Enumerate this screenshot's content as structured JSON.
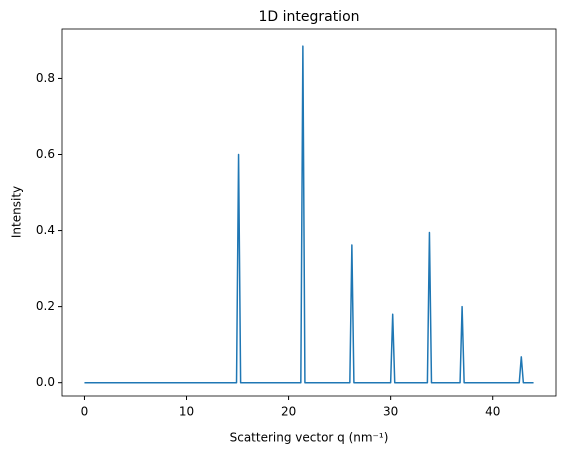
{
  "chart_data": {
    "type": "line",
    "title": "1D integration",
    "x_label": "Scattering vector q (nm⁻¹)",
    "y_label": "Intensity",
    "x": [
      0,
      14.9,
      15.1,
      15.3,
      21.2,
      21.4,
      21.6,
      26.0,
      26.2,
      26.4,
      30.0,
      30.2,
      30.4,
      33.6,
      33.8,
      34.0,
      36.8,
      37.0,
      37.2,
      42.6,
      42.8,
      43.0,
      44
    ],
    "series": [
      {
        "name": "Intensity",
        "color": "#1f77b4",
        "values": [
          0,
          0,
          0.6,
          0,
          0,
          0.885,
          0,
          0,
          0.362,
          0,
          0,
          0.18,
          0,
          0,
          0.395,
          0,
          0,
          0.2,
          0,
          0,
          0.068,
          0,
          0
        ]
      }
    ],
    "xlim": [
      -2.2,
      46.2
    ],
    "ylim": [
      -0.035,
      0.93
    ],
    "xticks": [
      0,
      10,
      20,
      30,
      40
    ],
    "yticks": [
      {
        "value": 0,
        "label": "0.0"
      },
      0.2,
      0.4,
      0.6,
      0.8
    ],
    "grid": false
  }
}
